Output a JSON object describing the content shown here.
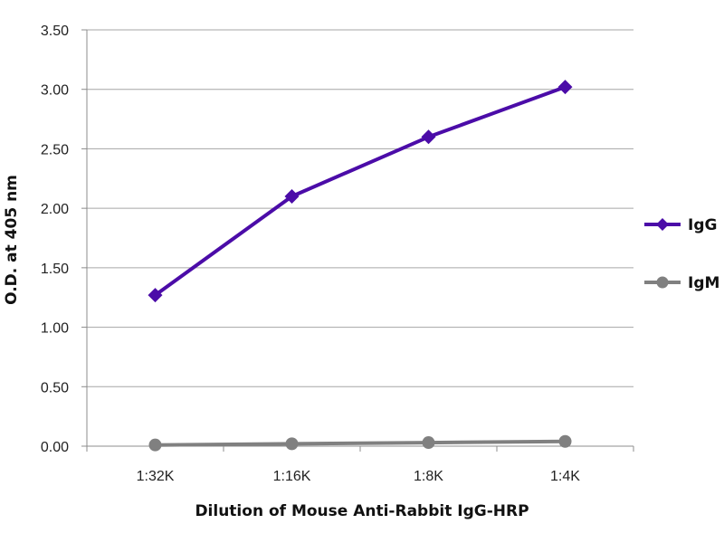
{
  "chart_data": {
    "type": "line",
    "title": "",
    "xlabel": "Dilution of Mouse Anti-Rabbit IgG-HRP",
    "ylabel": "O.D. at 405 nm",
    "categories": [
      "1:32K",
      "1:16K",
      "1:8K",
      "1:4K"
    ],
    "ylim": [
      0,
      3.5
    ],
    "yticks": [
      "0.00",
      "0.50",
      "1.00",
      "1.50",
      "2.00",
      "2.50",
      "3.00",
      "3.50"
    ],
    "grid": true,
    "legend_position": "right",
    "series": [
      {
        "name": "IgG",
        "values": [
          1.27,
          2.1,
          2.6,
          3.02
        ],
        "color": "#4B0CA8",
        "marker": "diamond"
      },
      {
        "name": "IgM",
        "values": [
          0.01,
          0.02,
          0.03,
          0.04
        ],
        "color": "#808080",
        "marker": "circle"
      }
    ]
  }
}
